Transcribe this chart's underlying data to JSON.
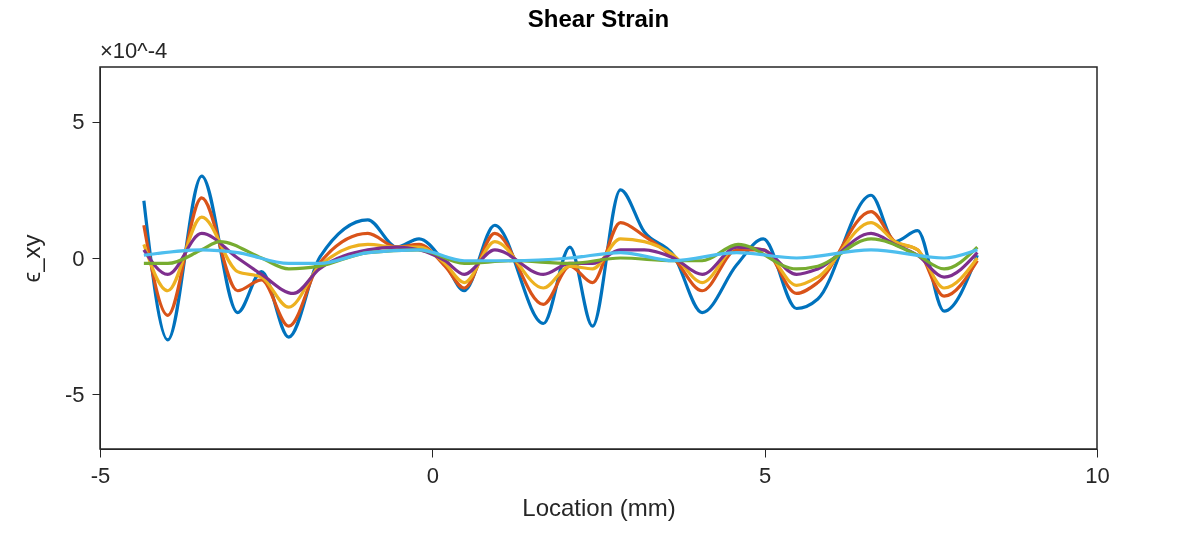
{
  "chart_data": {
    "type": "line",
    "title": "Shear Strain",
    "xlabel": "Location (mm)",
    "ylabel": "ϵ_xy",
    "annotations": [
      "×10^-4"
    ],
    "xlim": [
      -5,
      10
    ],
    "xticks": [
      -5,
      0,
      5,
      10
    ],
    "ylim": [
      -7,
      7
    ],
    "yticks": [
      -5,
      0,
      5
    ],
    "grid": false,
    "legend": false,
    "marker": "none",
    "line_style": "solid",
    "series": [
      {
        "color": "#0072bd",
        "x": [
          -4.34,
          -3.98,
          -3.47,
          -2.93,
          -2.57,
          -2.16,
          -1.7,
          -0.97,
          -0.54,
          -0.2,
          0.19,
          0.48,
          0.94,
          1.67,
          2.07,
          2.41,
          2.83,
          3.19,
          3.63,
          4.06,
          4.58,
          4.98,
          5.48,
          5.8,
          6.6,
          6.96,
          7.3,
          7.7,
          8.2
        ],
        "values": [
          2.1,
          -3.0,
          3.0,
          -2.0,
          -0.5,
          -2.9,
          0.0,
          1.4,
          0.4,
          0.7,
          -0.2,
          -1.2,
          1.2,
          -2.4,
          0.4,
          -2.5,
          2.5,
          0.95,
          0.1,
          -2.0,
          -0.25,
          0.7,
          -1.85,
          -1.5,
          2.3,
          0.6,
          1.0,
          -1.95,
          0.1
        ]
      },
      {
        "color": "#d95319",
        "x": [
          -4.34,
          -3.98,
          -3.47,
          -2.93,
          -2.57,
          -2.16,
          -1.7,
          -0.97,
          -0.54,
          -0.2,
          0.19,
          0.48,
          0.94,
          1.67,
          2.07,
          2.41,
          2.83,
          3.19,
          3.63,
          4.06,
          4.58,
          4.98,
          5.48,
          5.8,
          6.6,
          6.96,
          7.3,
          7.7,
          8.2
        ],
        "values": [
          1.2,
          -2.1,
          2.2,
          -1.2,
          -0.8,
          -2.5,
          -0.2,
          0.9,
          0.4,
          0.5,
          -0.3,
          -1.1,
          0.9,
          -1.7,
          -0.3,
          -0.9,
          1.3,
          0.8,
          0.0,
          -1.2,
          0.3,
          0.3,
          -1.3,
          -0.9,
          1.7,
          0.6,
          0.3,
          -1.4,
          -0.1
        ]
      },
      {
        "color": "#edb120",
        "x": [
          -4.34,
          -3.98,
          -3.47,
          -2.93,
          -2.57,
          -2.16,
          -1.7,
          -0.97,
          -0.54,
          -0.2,
          0.19,
          0.48,
          0.94,
          1.67,
          2.07,
          2.41,
          2.83,
          3.19,
          3.63,
          4.06,
          4.58,
          4.98,
          5.48,
          5.8,
          6.6,
          6.96,
          7.3,
          7.7,
          8.2
        ],
        "values": [
          0.5,
          -1.2,
          1.5,
          -0.5,
          -0.7,
          -1.8,
          -0.3,
          0.5,
          0.4,
          0.4,
          -0.2,
          -0.9,
          0.6,
          -1.1,
          -0.3,
          -0.4,
          0.7,
          0.6,
          0.1,
          -0.9,
          0.4,
          0.3,
          -1.0,
          -0.7,
          1.3,
          0.6,
          0.3,
          -1.1,
          0.0
        ]
      },
      {
        "color": "#7e2f8e",
        "x": [
          -4.34,
          -3.98,
          -3.47,
          -2.93,
          -2.57,
          -2.09,
          -1.7,
          -0.97,
          -0.54,
          -0.2,
          0.19,
          0.48,
          0.94,
          1.67,
          2.07,
          2.41,
          2.83,
          3.19,
          3.63,
          4.06,
          4.58,
          4.98,
          5.48,
          5.8,
          6.6,
          6.96,
          7.3,
          7.7,
          8.2
        ],
        "values": [
          0.3,
          -0.6,
          0.9,
          0.0,
          -0.6,
          -1.3,
          -0.4,
          0.3,
          0.4,
          0.3,
          -0.1,
          -0.6,
          0.3,
          -0.6,
          -0.2,
          -0.2,
          0.3,
          0.3,
          0.0,
          -0.6,
          0.4,
          0.3,
          -0.6,
          -0.4,
          0.9,
          0.5,
          0.1,
          -0.7,
          0.2
        ]
      },
      {
        "color": "#77ac30",
        "x": [
          -4.34,
          -3.98,
          -3.47,
          -3.2,
          -2.57,
          -2.16,
          -1.7,
          -0.97,
          -0.2,
          0.48,
          1.2,
          2.07,
          2.83,
          3.63,
          4.06,
          4.6,
          5.48,
          5.8,
          6.6,
          7.3,
          7.7,
          8.2
        ],
        "values": [
          -0.2,
          -0.2,
          0.3,
          0.6,
          0.0,
          -0.4,
          -0.3,
          0.2,
          0.3,
          -0.2,
          -0.1,
          -0.2,
          0.0,
          -0.1,
          -0.1,
          0.5,
          -0.4,
          -0.3,
          0.7,
          0.1,
          -0.4,
          0.4
        ]
      },
      {
        "color": "#4dbeee",
        "x": [
          -4.34,
          -3.47,
          -2.93,
          -2.16,
          -1.7,
          -0.97,
          -0.2,
          0.48,
          1.2,
          2.07,
          2.83,
          3.63,
          4.58,
          5.48,
          6.6,
          7.7,
          8.2
        ],
        "values": [
          0.1,
          0.3,
          0.2,
          -0.2,
          -0.2,
          0.2,
          0.3,
          -0.1,
          -0.1,
          0.0,
          0.2,
          -0.1,
          0.2,
          0.0,
          0.3,
          0.0,
          0.3
        ]
      }
    ]
  }
}
